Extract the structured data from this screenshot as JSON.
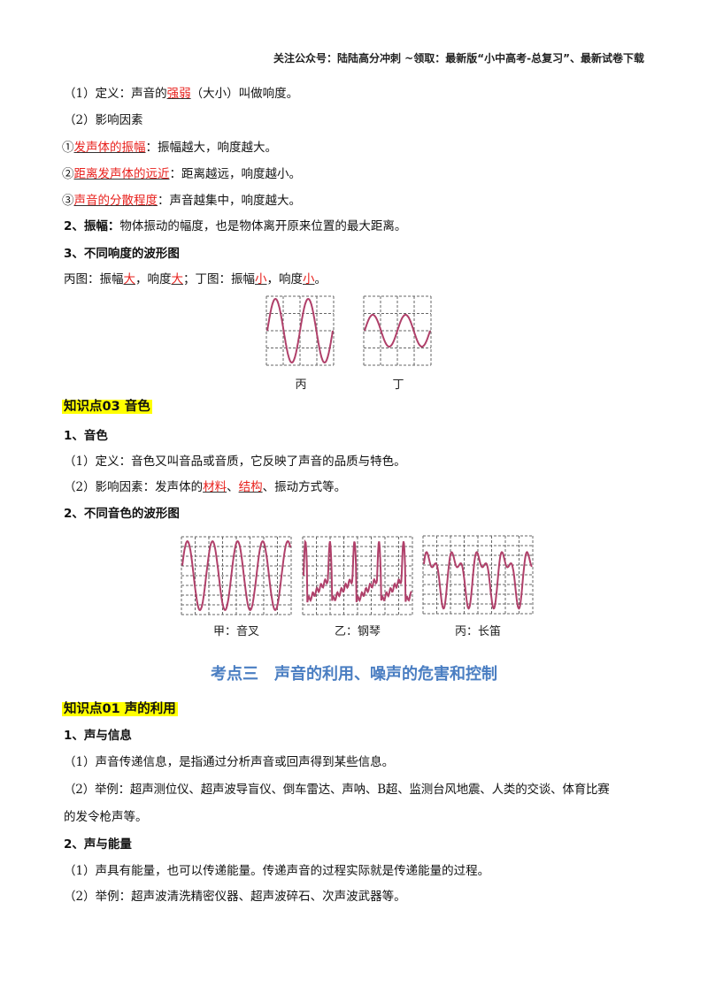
{
  "header": "关注公众号：陆陆高分冲刺  ~领取：最新版“小中高考-总复习”、最新试卷下载",
  "loudness": {
    "def_a": "（1）定义：声音的",
    "def_red": "强弱",
    "def_b": "（大小）叫做响度。",
    "factors": "（2）影响因素",
    "f1_a": "①",
    "f1_red": "发声体的振幅",
    "f1_b": "：振幅越大，响度越大。",
    "f2_a": "②",
    "f2_red": "距离发声体的远近",
    "f2_b": "：距离越远，响度越小。",
    "f3_a": "③",
    "f3_red": "声音的分散程度",
    "f3_b": "：声音越集中，响度越大。",
    "amp_bold": "2、振幅：",
    "amp_text": "物体振动的幅度，也是物体离开原来位置的最大距离。",
    "wave_heading": "3、不同响度的波形图",
    "wave_a": "丙图：振幅",
    "wave_r1": "大",
    "wave_b": "，响度",
    "wave_r2": "大",
    "wave_c": "；丁图：振幅",
    "wave_r3": "小",
    "wave_d": "，响度",
    "wave_r4": "小",
    "wave_e": "。",
    "fig_captions": [
      "丙",
      "丁"
    ]
  },
  "timbre": {
    "heading": "知识点03  音色",
    "sub1": "1、音色",
    "def": "（1）定义：音色又叫音品或音质，它反映了声音的品质与特色。",
    "fac_a": "（2）影响因素：发声体的",
    "fac_r1": "材料",
    "fac_b": "、",
    "fac_r2": "结构",
    "fac_c": "、振动方式等。",
    "sub2": "2、不同音色的波形图",
    "fig_captions": [
      "甲：音叉",
      "乙：钢琴",
      "丙：长笛"
    ]
  },
  "section_title": "考点三　声音的利用、噪声的危害和控制",
  "use": {
    "heading": "知识点01  声的利用",
    "sub1": "1、声与信息",
    "p1": "（1）声音传递信息，是指通过分析声音或回声得到某些信息。",
    "p2": "（2）举例：超声测位仪、超声波导盲仪、倒车雷达、声呐、B超、监测台风地震、人类的交谈、体育比赛",
    "p2b": "的发令枪声等。",
    "sub2": "2、声与能量",
    "p3": "（1）声具有能量，也可以传递能量。传递声音的过程实际就是传递能量的过程。",
    "p4": "（2）举例：超声波清洗精密仪器、超声波碎石、次声波武器等。"
  },
  "colors": {
    "highlight": "#ffff00",
    "red_text": "#e8201c",
    "section_title": "#4a7ec2",
    "waveform": "#b0406a"
  }
}
